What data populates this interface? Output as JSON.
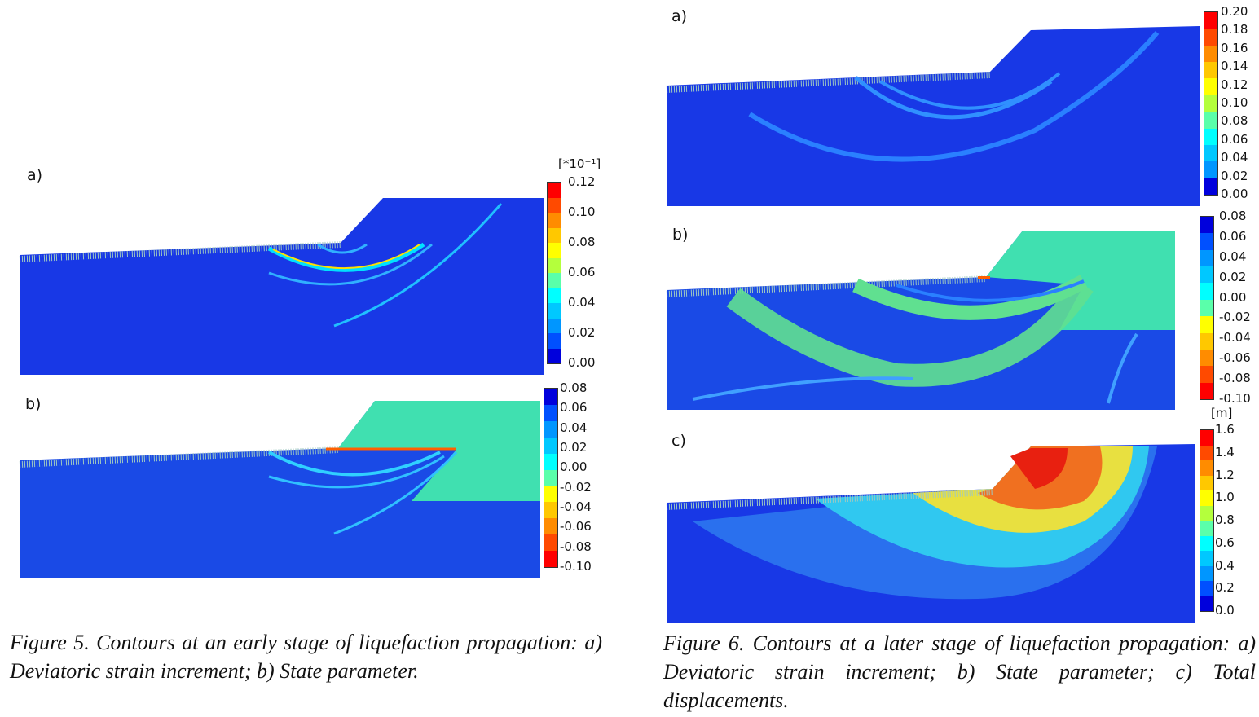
{
  "figure5": {
    "panel_a": {
      "label": "a)",
      "legend_unit": "[*10⁻¹]",
      "ticks": [
        "0.12",
        "0.10",
        "0.08",
        "0.06",
        "0.04",
        "0.02",
        "0.00"
      ]
    },
    "panel_b": {
      "label": "b)",
      "ticks": [
        "0.08",
        "0.06",
        "0.04",
        "0.02",
        "0.00",
        "-0.02",
        "-0.04",
        "-0.06",
        "-0.08",
        "-0.10"
      ]
    },
    "caption": "Figure 5. Contours at an early stage of liquefaction propagation: a) Deviatoric strain increment; b) State parameter."
  },
  "figure6": {
    "panel_a": {
      "label": "a)",
      "ticks": [
        "0.20",
        "0.18",
        "0.16",
        "0.14",
        "0.12",
        "0.10",
        "0.08",
        "0.06",
        "0.04",
        "0.02",
        "0.00"
      ]
    },
    "panel_b": {
      "label": "b)",
      "ticks": [
        "0.08",
        "0.06",
        "0.04",
        "0.02",
        "0.00",
        "-0.02",
        "-0.04",
        "-0.06",
        "-0.08",
        "-0.10"
      ]
    },
    "panel_c": {
      "label": "c)",
      "legend_unit": "[m]",
      "ticks": [
        "1.6",
        "1.4",
        "1.2",
        "1.0",
        "0.8",
        "0.6",
        "0.4",
        "0.2",
        "0.0"
      ]
    },
    "caption": "Figure 6. Contours at a later stage of liquefaction propagation: a) Deviatoric strain increment; b) State parameter; c) Total displacements."
  },
  "colors": {
    "scale": [
      "#ff0000",
      "#ff4a00",
      "#ff8c00",
      "#ffc800",
      "#ffff00",
      "#b4ff3c",
      "#5affaa",
      "#00ffff",
      "#00c8ff",
      "#0096ff",
      "#0050ff",
      "#0000dc"
    ],
    "soil": "#1a3de0"
  }
}
